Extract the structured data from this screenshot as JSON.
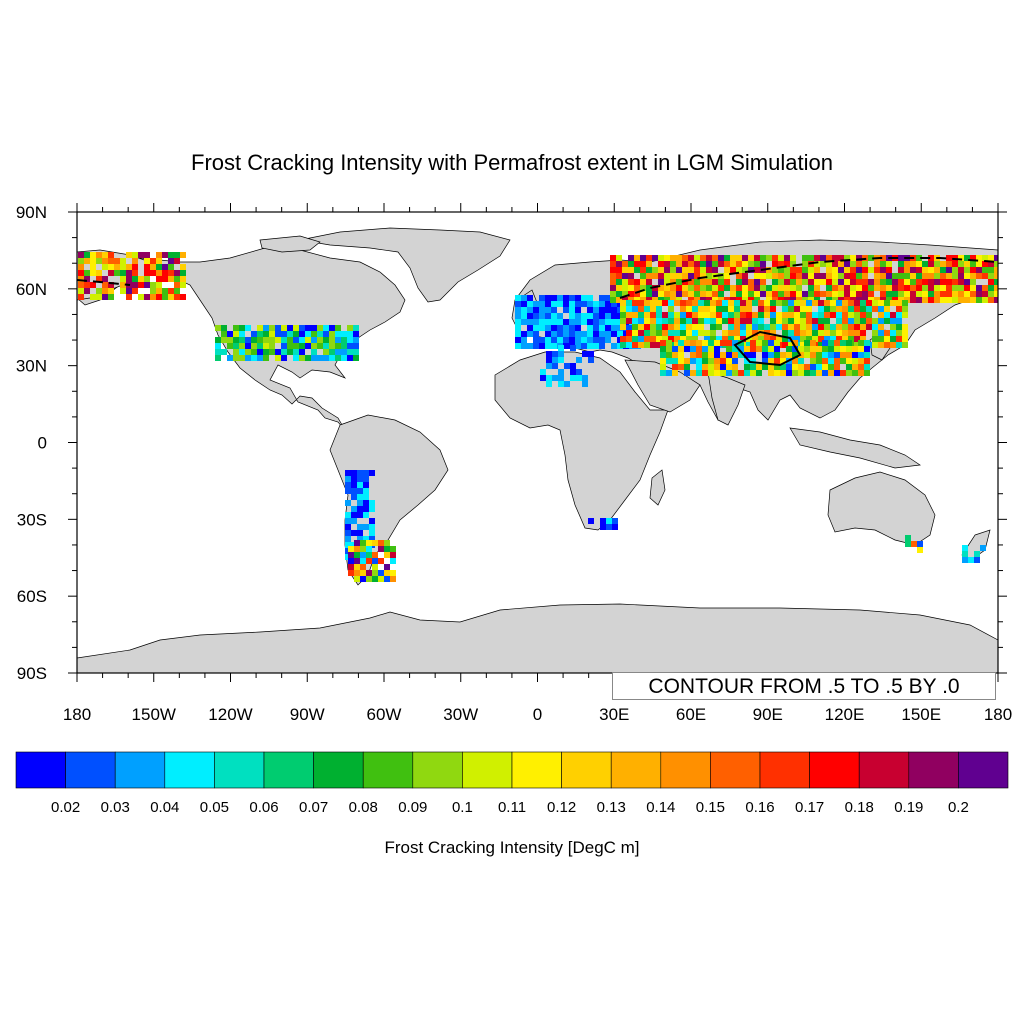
{
  "title": "Frost Cracking Intensity with Permafrost extent in LGM Simulation",
  "map": {
    "lat_labels": [
      "90N",
      "60N",
      "30N",
      "0",
      "30S",
      "60S",
      "90S"
    ],
    "lon_labels": [
      "180",
      "150W",
      "120W",
      "90W",
      "60W",
      "30W",
      "0",
      "30E",
      "60E",
      "90E",
      "120E",
      "150E",
      "180"
    ],
    "land_color": "#d3d3d3",
    "ocean_color": "#ffffff",
    "contour_info": "CONTOUR FROM .5 TO .5 BY .0",
    "contour_line_style": "dashed black"
  },
  "colorbar": {
    "title": "Frost Cracking Intensity [DegC m]",
    "tick_labels": [
      "0.02",
      "0.03",
      "0.04",
      "0.05",
      "0.06",
      "0.07",
      "0.08",
      "0.09",
      "0.1",
      "0.11",
      "0.12",
      "0.13",
      "0.14",
      "0.15",
      "0.16",
      "0.17",
      "0.18",
      "0.19",
      "0.2"
    ],
    "colors": [
      "#0000ff",
      "#0050ff",
      "#00a0ff",
      "#00eeff",
      "#00e0c0",
      "#00cc70",
      "#00b030",
      "#40c010",
      "#90d810",
      "#d0f000",
      "#fff000",
      "#ffd000",
      "#ffb000",
      "#ff9000",
      "#ff6000",
      "#ff3000",
      "#ff0000",
      "#c80030",
      "#900060",
      "#600090"
    ]
  }
}
